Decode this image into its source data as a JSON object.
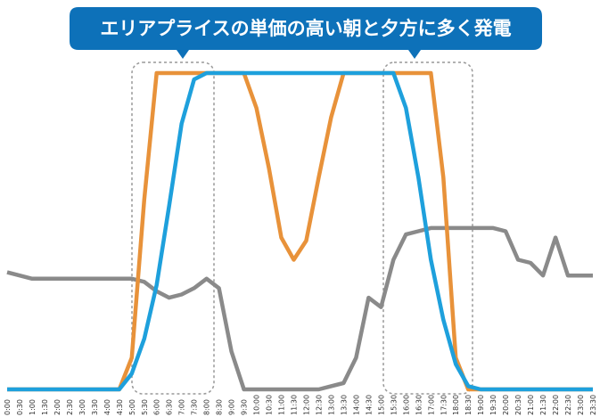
{
  "chart_data": {
    "type": "line",
    "title": "エリアプライスの単価の高い朝と夕方に多く発電",
    "categories": [
      "0:00",
      "0:30",
      "1:00",
      "1:30",
      "2:00",
      "2:30",
      "3:00",
      "3:30",
      "4:00",
      "4:30",
      "5:00",
      "5:30",
      "6:00",
      "6:30",
      "7:00",
      "7:30",
      "8:00",
      "8:30",
      "9:00",
      "9:30",
      "10:00",
      "10:30",
      "11:00",
      "11:30",
      "12:00",
      "12:30",
      "13:00",
      "13:30",
      "14:00",
      "14:30",
      "15:00",
      "15:30",
      "16:00",
      "16:30",
      "17:00",
      "17:30",
      "18:00",
      "18:30",
      "19:00",
      "19:30",
      "20:00",
      "20:30",
      "21:00",
      "21:30",
      "22:00",
      "22:30",
      "23:00",
      "23:30"
    ],
    "series": [
      {
        "color": "#8a8a8a",
        "values": [
          37,
          36,
          35,
          35,
          35,
          35,
          35,
          35,
          35,
          35,
          35,
          34,
          31,
          29,
          30,
          32,
          35,
          32,
          12,
          0,
          0,
          0,
          0,
          0,
          0,
          0,
          1,
          2,
          10,
          29,
          26,
          41,
          49,
          50,
          51,
          51,
          51,
          51,
          51,
          51,
          50,
          41,
          40,
          36,
          48,
          36,
          36,
          36
        ]
      },
      {
        "color": "#e8923a",
        "values": [
          0,
          0,
          0,
          0,
          0,
          0,
          0,
          0,
          0,
          0,
          10,
          60,
          100,
          100,
          100,
          100,
          100,
          100,
          100,
          100,
          89,
          70,
          48,
          41,
          47,
          67,
          86,
          100,
          100,
          100,
          100,
          100,
          100,
          100,
          100,
          67,
          10,
          0,
          0,
          0,
          0,
          0,
          0,
          0,
          0,
          0,
          0,
          0
        ]
      },
      {
        "color": "#1ea0dc",
        "values": [
          0,
          0,
          0,
          0,
          0,
          0,
          0,
          0,
          0,
          0,
          5,
          16,
          33,
          58,
          84,
          98,
          100,
          100,
          100,
          100,
          100,
          100,
          100,
          100,
          100,
          100,
          100,
          100,
          100,
          100,
          100,
          100,
          89,
          67,
          41,
          22,
          8,
          1,
          0,
          0,
          0,
          0,
          0,
          0,
          0,
          0,
          0,
          0
        ]
      }
    ],
    "ylim": [
      0,
      100
    ]
  }
}
